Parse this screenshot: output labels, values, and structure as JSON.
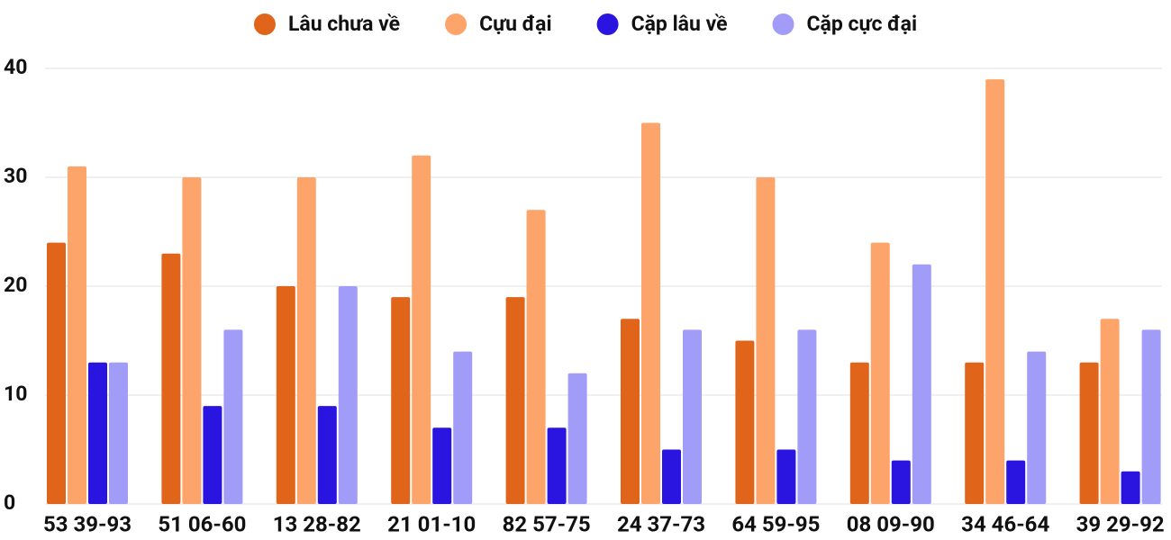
{
  "chart_data": {
    "type": "bar",
    "categories": [
      "53 39-93",
      "51 06-60",
      "13 28-82",
      "21 01-10",
      "82 57-75",
      "24 37-73",
      "64 59-95",
      "08 09-90",
      "34 46-64",
      "39 29-92"
    ],
    "series": [
      {
        "name": "Lâu chưa về",
        "color": "#e0641a",
        "values": [
          24,
          23,
          20,
          19,
          19,
          17,
          15,
          13,
          13,
          13
        ]
      },
      {
        "name": "Cựu đại",
        "color": "#fda46a",
        "values": [
          31,
          30,
          30,
          32,
          27,
          35,
          30,
          24,
          39,
          17
        ]
      },
      {
        "name": "Cặp lâu về",
        "color": "#2a14e0",
        "values": [
          13,
          9,
          9,
          7,
          7,
          5,
          5,
          4,
          4,
          3
        ]
      },
      {
        "name": "Cặp cực đại",
        "color": "#a09cf8",
        "values": [
          13,
          16,
          20,
          14,
          12,
          16,
          16,
          22,
          14,
          16
        ]
      }
    ],
    "ylim": [
      0,
      40
    ],
    "yticks": [
      0,
      10,
      20,
      30,
      40
    ],
    "grid": true,
    "legend": "top"
  }
}
